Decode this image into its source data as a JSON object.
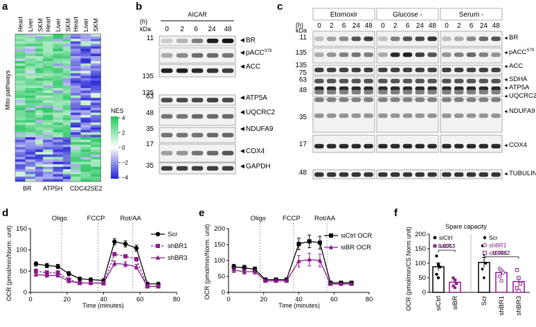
{
  "panel_letters": [
    "a",
    "b",
    "c",
    "d",
    "e",
    "f"
  ],
  "panel_a": {
    "col_labels": [
      "Heart",
      "Liver",
      "SKM",
      "Heart",
      "Liver",
      "SKM",
      "Heart",
      "Liver",
      "SKM"
    ],
    "group_labels": [
      "BR",
      "ATP5H",
      "CDC42SE2"
    ],
    "ylabel": "Mito pathways",
    "legend_title": "NES",
    "legend_ticks": [
      "4",
      "2",
      "0",
      "−2",
      "−4"
    ],
    "colors": {
      "pos": "#22c55e",
      "neg": "#2323d4",
      "mid": "#ffffff"
    }
  },
  "panel_b": {
    "treatment": "AICAR",
    "time_header": "(h)",
    "kda_header": "kDa",
    "times": [
      "0",
      "2",
      "6",
      "24",
      "48"
    ],
    "rows": [
      {
        "kda": "11",
        "label": "BR"
      },
      {
        "kda": "",
        "label": "pACC",
        "sup": "S79"
      },
      {
        "kda": "135",
        "label": "ACC"
      },
      {
        "kda": "63",
        "label": "ATP5A"
      },
      {
        "kda": "48",
        "label": "UQCRC2"
      },
      {
        "kda": "35",
        "label": "NDUFA9"
      },
      {
        "kda": "17",
        "label": "COX4"
      },
      {
        "kda": "35",
        "label": "GAPDH"
      }
    ],
    "extra_kda": [
      "135"
    ]
  },
  "panel_c": {
    "conditions": [
      "Etomoxir",
      "Glucose -",
      "Serum -"
    ],
    "time_header": "(h)",
    "kda_header": "kDa",
    "times": [
      "0",
      "2",
      "6",
      "24",
      "48"
    ],
    "kda_marks": [
      "11",
      "135",
      "135",
      "75",
      "63",
      "48",
      "35",
      "17",
      "48"
    ],
    "labels": [
      {
        "label": "BR"
      },
      {
        "label": "pACC",
        "sup": "S79"
      },
      {
        "label": "ACC"
      },
      {
        "label": "SDHA"
      },
      {
        "label": "ATP5A"
      },
      {
        "label": "UQCRC2"
      },
      {
        "label": "NDUFA9"
      },
      {
        "label": "COX4"
      },
      {
        "label": "TUBULIN"
      }
    ]
  },
  "panel_d": {
    "xlabel": "Time (minutes)",
    "ylabel": "OCR (pmol/min/Norm. unit)",
    "injections": [
      "Oligo",
      "FCCP",
      "Rot/AA"
    ],
    "xticks": [
      "0",
      "20",
      "40",
      "60",
      "80"
    ],
    "yticks": [
      "0",
      "50",
      "100",
      "150"
    ],
    "chart_data": {
      "type": "line",
      "x": [
        3,
        9,
        15,
        21,
        27,
        33,
        40,
        46,
        52,
        58,
        64,
        70
      ],
      "xlim": [
        0,
        80
      ],
      "ylim": [
        0,
        150
      ],
      "injection_times": [
        17,
        37,
        56
      ],
      "series": [
        {
          "name": "Scr",
          "color": "#000000",
          "marker": "circle",
          "dash": "",
          "values": [
            67,
            63,
            61,
            44,
            32,
            30,
            28,
            119,
            114,
            104,
            20,
            20
          ],
          "err": [
            5,
            5,
            5,
            5,
            4,
            4,
            4,
            7,
            7,
            7,
            3,
            3
          ]
        },
        {
          "name": "shBR1",
          "color": "#8b1a8b",
          "marker": "square",
          "dash": "3,2",
          "values": [
            50,
            46,
            46,
            30,
            22,
            22,
            21,
            90,
            85,
            78,
            14,
            14
          ],
          "err": [
            5,
            5,
            5,
            4,
            3,
            3,
            3,
            4,
            4,
            4,
            2,
            2
          ]
        },
        {
          "name": "shBR3",
          "color": "#8b1a8b",
          "marker": "triangle",
          "dash": "",
          "values": [
            42,
            40,
            40,
            26,
            22,
            22,
            22,
            68,
            66,
            60,
            14,
            14
          ],
          "err": [
            4,
            4,
            4,
            3,
            3,
            3,
            3,
            6,
            6,
            6,
            2,
            2
          ]
        }
      ]
    }
  },
  "panel_e": {
    "xlabel": "Time (minutes)",
    "ylabel": "OCR (pmol/min/Norm. unit)",
    "injections": [
      "Oligo",
      "FCCP",
      "Rot/AA"
    ],
    "xticks": [
      "0",
      "20",
      "40",
      "60",
      "80"
    ],
    "yticks": [
      "0",
      "50",
      "100",
      "150",
      "200"
    ],
    "chart_data": {
      "type": "line",
      "x": [
        3,
        9,
        15,
        21,
        27,
        33,
        40,
        46,
        52,
        58,
        64,
        70
      ],
      "xlim": [
        0,
        80
      ],
      "ylim": [
        0,
        200
      ],
      "injection_times": [
        18,
        37,
        56
      ],
      "series": [
        {
          "name": "siCtrl OCR",
          "color": "#000000",
          "marker": "square",
          "dash": "",
          "values": [
            80,
            77,
            72,
            40,
            40,
            40,
            152,
            160,
            156,
            30,
            30,
            30
          ],
          "err": [
            8,
            8,
            8,
            5,
            5,
            5,
            18,
            20,
            20,
            4,
            4,
            4
          ]
        },
        {
          "name": "siBR OCR",
          "color": "#8b1a8b",
          "marker": "triangle",
          "dash": "",
          "values": [
            70,
            65,
            65,
            36,
            36,
            36,
            98,
            103,
            100,
            26,
            26,
            26
          ],
          "err": [
            8,
            8,
            8,
            5,
            5,
            5,
            18,
            20,
            20,
            4,
            4,
            4
          ]
        }
      ]
    }
  },
  "panel_f": {
    "title": "Spare capacity",
    "ylabel": "OCR (pmol/min/CS Norm unit)",
    "yticks": [
      "0",
      "50",
      "100",
      "150",
      "200"
    ],
    "pvalues": [
      "0.0053",
      "0.0082"
    ],
    "legend_left": [
      {
        "name": "siCtrl",
        "color": "#000000",
        "marker": "circle"
      },
      {
        "name": "siBR",
        "color": "#8b1a8b",
        "marker": "square"
      }
    ],
    "legend_right": [
      {
        "name": "Scr",
        "color": "#000000",
        "marker": "diamond"
      },
      {
        "name": "shBR1",
        "color": "#8b1a8b",
        "marker": "open-circle"
      },
      {
        "name": "shBR3",
        "color": "#8b1a8b",
        "marker": "open-square"
      }
    ],
    "chart_data": {
      "type": "bar",
      "categories": [
        "siCtrl",
        "siBR",
        "Scr",
        "shBR1",
        "shBR3"
      ],
      "values": [
        88,
        35,
        103,
        68,
        37
      ],
      "err": [
        13,
        8,
        17,
        10,
        12
      ],
      "ylim": [
        0,
        200
      ],
      "colors": [
        "#000000",
        "#8b1a8b",
        "#000000",
        "#8b1a8b",
        "#8b1a8b"
      ],
      "points": [
        [
          125,
          95,
          87,
          62,
          50
        ],
        [
          50,
          43,
          30,
          22,
          16
        ],
        [
          160,
          130,
          100,
          80,
          50
        ],
        [
          82,
          75,
          68,
          55,
          40
        ],
        [
          77,
          50,
          30,
          15,
          5
        ]
      ]
    }
  }
}
